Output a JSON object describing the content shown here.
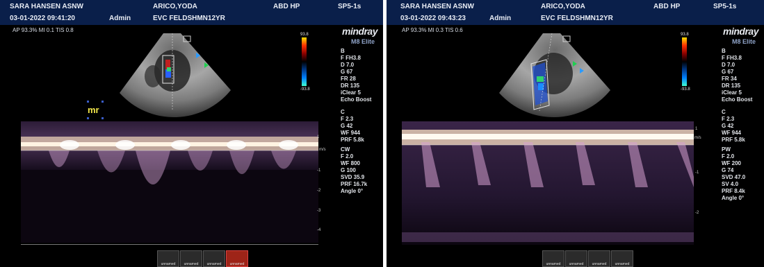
{
  "panels": [
    {
      "header": {
        "operator": "SARA HANSEN ASNW",
        "patient": "ARICO,YODA",
        "preset": "ABD HP",
        "probe": "SP5-1s",
        "datetime": "03-01-2022 09:41:20",
        "user": "Admin",
        "exam": "EVC FELDSHMN12YR"
      },
      "metrics": "AP 93.3%  MI 0.1  TIS 0.8",
      "brand": "mindray",
      "model": "M8 Elite",
      "colorbar": {
        "top": "93.8",
        "bottom": "-93.8"
      },
      "b_params": [
        "B",
        "F FH3.8",
        "D 7.0",
        "G 67",
        "FR 28",
        "DR 135",
        "iClear 5",
        "Echo Boost"
      ],
      "c_params": [
        "C",
        "F 2.3",
        "G 42",
        "WF 944",
        "PRF 5.8k"
      ],
      "doppler_params": [
        "CW",
        "F 2.0",
        "WF 800",
        "G 100",
        "SVD 35.9",
        "PRF 16.7k",
        "Angle 0°"
      ],
      "annotation": "mr",
      "unit": "m/s",
      "axis_ticks": [
        "1",
        "-1",
        "-2",
        "-3",
        "-4"
      ],
      "thumbnails": [
        "unnamed",
        "unnamed",
        "unnamed",
        "unnamed"
      ]
    },
    {
      "header": {
        "operator": "SARA HANSEN ASNW",
        "patient": "ARICO,YODA",
        "preset": "ABD HP",
        "probe": "SP5-1s",
        "datetime": "03-01-2022 09:43:23",
        "user": "Admin",
        "exam": "EVC FELDSHMN12YR"
      },
      "metrics": "AP 93.3%  MI 0.3  TIS 0.6",
      "brand": "mindray",
      "model": "M8 Elite",
      "colorbar": {
        "top": "93.8",
        "bottom": "-93.8"
      },
      "b_params": [
        "B",
        "F FH3.8",
        "D 7.0",
        "G 67",
        "FR 34",
        "DR 135",
        "iClear 5",
        "Echo Boost"
      ],
      "c_params": [
        "C",
        "F 2.3",
        "G 42",
        "WF 944",
        "PRF 5.8k"
      ],
      "doppler_params": [
        "PW",
        "F 2.0",
        "WF 200",
        "G 74",
        "SVD 47.0",
        "SV 4.0",
        "PRF 8.4k",
        "Angle 0°"
      ],
      "unit": "m/s",
      "axis_ticks": [
        "1",
        "-1",
        "-2"
      ],
      "thumbnails": [
        "unnamed",
        "unnamed",
        "unnamed",
        "unnamed"
      ]
    }
  ]
}
